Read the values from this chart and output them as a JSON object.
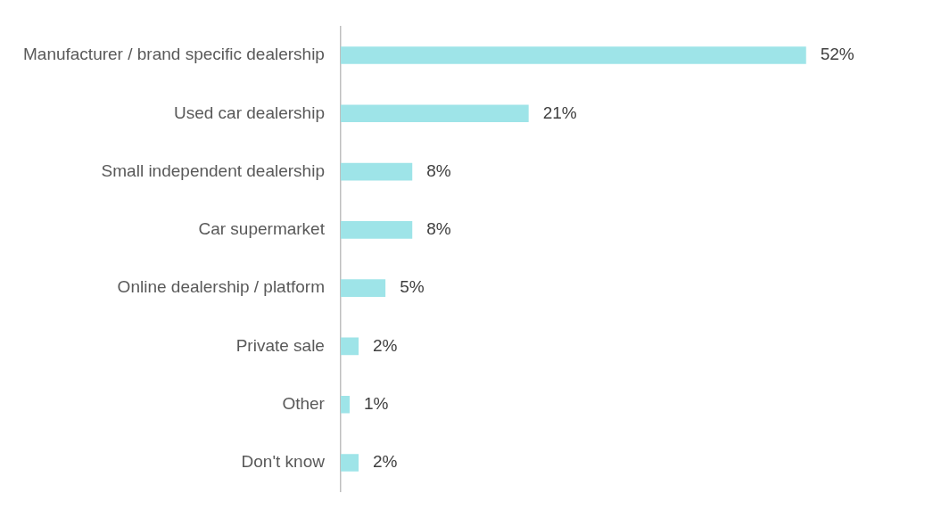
{
  "chart_data": {
    "type": "bar",
    "orientation": "horizontal",
    "categories": [
      "Manufacturer / brand specific dealership",
      "Used car dealership",
      "Small independent dealership",
      "Car supermarket",
      "Online dealership / platform",
      "Private sale",
      "Other",
      "Don't know"
    ],
    "values": [
      52,
      21,
      8,
      8,
      5,
      2,
      1,
      2
    ],
    "value_labels": [
      "52%",
      "21%",
      "8%",
      "8%",
      "5%",
      "2%",
      "1%",
      "2%"
    ],
    "color": "#9ee4e8",
    "tick_labels": "y"
  }
}
